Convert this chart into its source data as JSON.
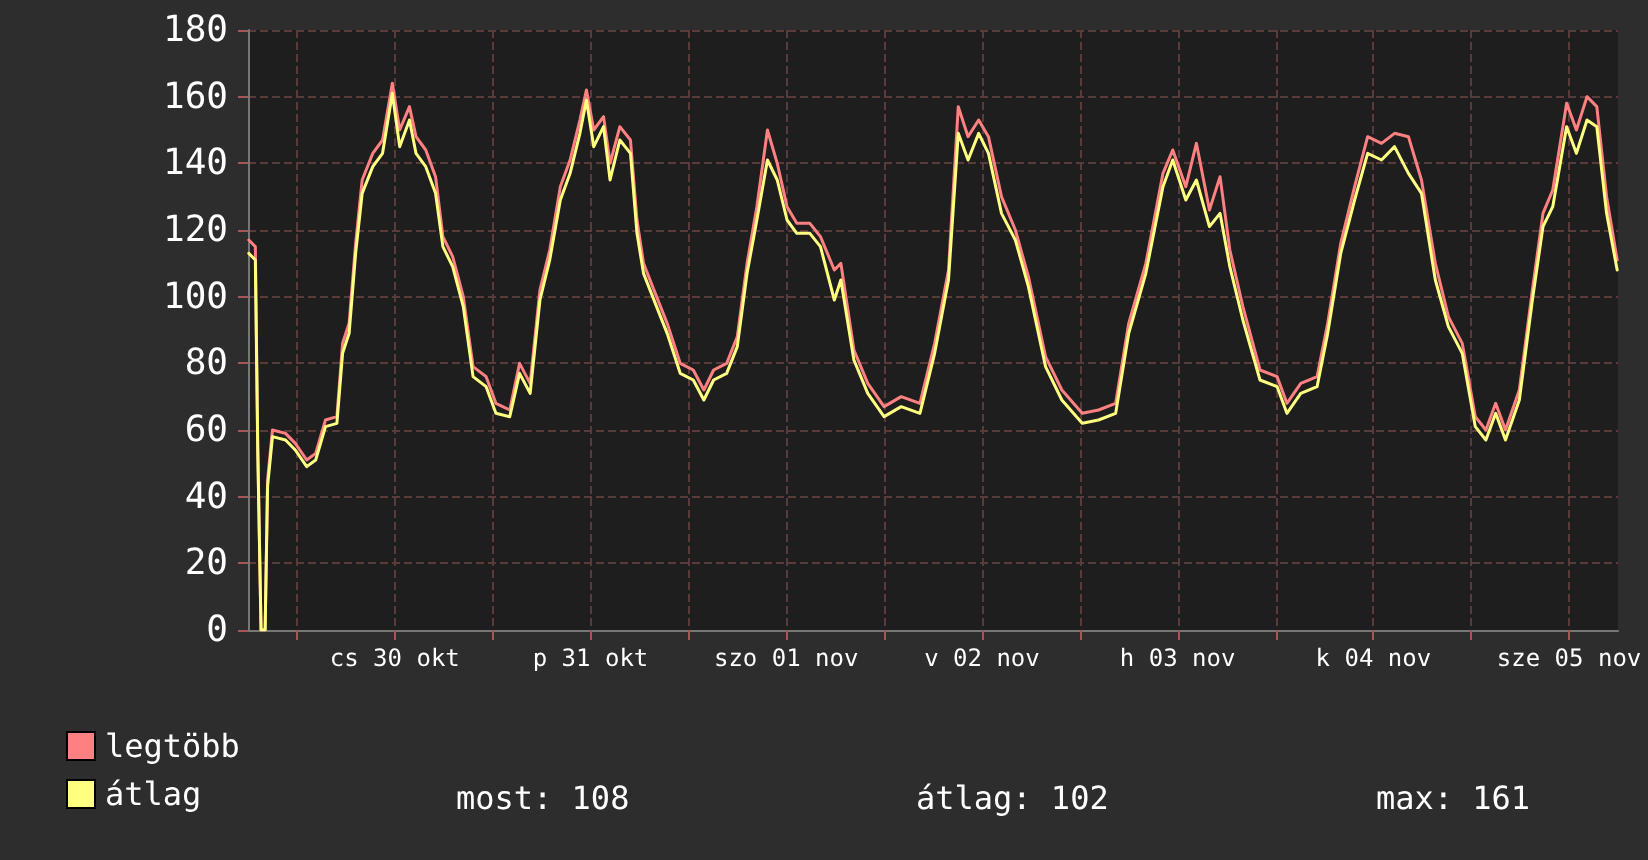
{
  "chart_data": {
    "type": "line",
    "x": [
      "--10-29T18:06",
      "--10-29T18:54",
      "--10-29T19:12",
      "--10-29T19:36",
      "--10-29T20:06",
      "--10-29T20:24",
      "--10-29T21:00",
      "--10-29T22:36",
      "--10-29T23:48",
      "--10-30T01:12",
      "--10-30T02:18",
      "--10-30T03:30",
      "--10-30T04:54",
      "--10-30T05:36",
      "--10-30T06:24",
      "--10-30T07:12",
      "--10-30T08:00",
      "--10-30T09:18",
      "--10-30T10:30",
      "--10-30T11:42",
      "--10-30T12:36",
      "--10-30T13:48",
      "--10-30T14:36",
      "--10-30T15:48",
      "--10-30T17:00",
      "--10-30T17:54",
      "--10-30T19:06",
      "--10-30T20:24",
      "--10-30T21:36",
      "--10-30T23:12",
      "--10-31T00:24",
      "--10-31T02:06",
      "--10-31T03:18",
      "--10-31T04:36",
      "--10-31T05:48",
      "--10-31T07:00",
      "--10-31T08:18",
      "--10-31T09:30",
      "--10-31T10:42",
      "--10-31T11:30",
      "--10-31T12:24",
      "--10-31T13:36",
      "--10-31T14:24",
      "--10-31T15:36",
      "--10-31T16:54",
      "--10-31T17:42",
      "--10-31T18:30",
      "--10-31T20:06",
      "--10-31T21:24",
      "--10-31T23:00",
      "--11-01T00:36",
      "--11-01T01:54",
      "--11-01T03:06",
      "--11-01T04:42",
      "--11-01T06:00",
      "--11-01T07:12",
      "--11-01T08:24",
      "--11-01T09:42",
      "--11-01T10:54",
      "--11-01T12:06",
      "--11-01T13:18",
      "--11-01T14:54",
      "--11-01T16:12",
      "--11-01T17:54",
      "--11-01T18:42",
      "--11-01T20:18",
      "--11-01T22:00",
      "--11-02T00:00",
      "--11-02T02:06",
      "--11-02T04:24",
      "--11-02T06:12",
      "--11-02T07:54",
      "--11-02T09:06",
      "--11-02T10:18",
      "--11-02T11:36",
      "--11-02T12:48",
      "--11-02T14:24",
      "--11-02T16:06",
      "--11-02T17:42",
      "--11-02T19:48",
      "--11-02T21:48",
      "--11-03T00:18",
      "--11-03T02:18",
      "--11-03T04:24",
      "--11-03T06:00",
      "--11-03T08:06",
      "--11-03T10:12",
      "--11-03T11:24",
      "--11-03T13:00",
      "--11-03T14:18",
      "--11-03T15:54",
      "--11-03T17:12",
      "--11-03T18:24",
      "--11-03T20:00",
      "--11-03T22:06",
      "--11-04T00:12",
      "--11-04T01:24",
      "--11-04T03:06",
      "--11-04T05:06",
      "--11-04T06:24",
      "--11-04T08:00",
      "--11-04T09:42",
      "--11-04T11:18",
      "--11-04T13:00",
      "--11-04T14:36",
      "--11-04T16:18",
      "--11-04T17:54",
      "--11-04T19:36",
      "--11-04T21:12",
      "--11-04T22:54",
      "--11-05T00:30",
      "--11-05T01:48",
      "--11-05T03:00",
      "--11-05T04:12",
      "--11-05T05:54",
      "--11-05T07:30",
      "--11-05T08:48",
      "--11-05T10:00",
      "--11-05T11:42",
      "--11-05T12:54",
      "--11-05T14:12",
      "--11-05T15:24",
      "--11-05T16:36",
      "--11-05T17:54"
    ],
    "series": [
      {
        "name": "legtöbb",
        "color": "#ff8080",
        "values": [
          117,
          115,
          55,
          0,
          0,
          45,
          60,
          59,
          56,
          51,
          53,
          63,
          64,
          86,
          92,
          116,
          135,
          143,
          147,
          164,
          150,
          157,
          148,
          144,
          136,
          118,
          112,
          100,
          79,
          76,
          68,
          66,
          80,
          74,
          102,
          114,
          133,
          141,
          153,
          162,
          150,
          154,
          140,
          151,
          147,
          123,
          110,
          100,
          92,
          80,
          78,
          72,
          78,
          80,
          88,
          110,
          127,
          150,
          140,
          127,
          122,
          122,
          118,
          108,
          110,
          84,
          74,
          67,
          70,
          68,
          86,
          108,
          157,
          148,
          153,
          148,
          130,
          120,
          106,
          82,
          72,
          65,
          66,
          68,
          92,
          110,
          137,
          144,
          133,
          146,
          126,
          136,
          114,
          97,
          78,
          76,
          68,
          74,
          76,
          92,
          116,
          133,
          148,
          146,
          149,
          148,
          135,
          110,
          94,
          86,
          64,
          60,
          68,
          60,
          72,
          102,
          125,
          132,
          158,
          150,
          160,
          157,
          130,
          111
        ]
      },
      {
        "name": "átlag",
        "color": "#ffff80",
        "values": [
          113,
          111,
          53,
          0,
          0,
          43,
          58,
          57,
          54,
          49,
          51,
          61,
          62,
          83,
          89,
          113,
          131,
          139,
          143,
          161,
          145,
          153,
          143,
          139,
          131,
          115,
          109,
          97,
          76,
          73,
          65,
          64,
          77,
          71,
          99,
          111,
          129,
          137,
          149,
          159,
          145,
          151,
          135,
          147,
          143,
          119,
          107,
          97,
          89,
          77,
          75,
          69,
          75,
          77,
          85,
          107,
          123,
          141,
          135,
          123,
          119,
          119,
          115,
          99,
          105,
          81,
          71,
          64,
          67,
          65,
          83,
          105,
          149,
          141,
          149,
          143,
          125,
          117,
          103,
          79,
          69,
          62,
          63,
          65,
          89,
          107,
          133,
          141,
          129,
          135,
          121,
          125,
          109,
          93,
          75,
          73,
          65,
          71,
          73,
          89,
          113,
          129,
          143,
          141,
          145,
          137,
          131,
          105,
          91,
          83,
          61,
          57,
          65,
          57,
          69,
          99,
          121,
          127,
          151,
          143,
          153,
          151,
          125,
          108
        ]
      }
    ],
    "xlim": [
      "--10-29T18:00",
      "--11-05T18:00"
    ],
    "xticks": [
      {
        "value": "--10-30T00:00",
        "label": null
      },
      {
        "value": "--10-30T12:00",
        "label": "cs 30 okt"
      },
      {
        "value": "--10-31T00:00",
        "label": null
      },
      {
        "value": "--10-31T12:00",
        "label": "p 31 okt"
      },
      {
        "value": "--11-01T00:00",
        "label": null
      },
      {
        "value": "--11-01T12:00",
        "label": "szo 01 nov"
      },
      {
        "value": "--11-02T00:00",
        "label": null
      },
      {
        "value": "--11-02T12:00",
        "label": "v 02 nov"
      },
      {
        "value": "--11-03T00:00",
        "label": null
      },
      {
        "value": "--11-03T12:00",
        "label": "h 03 nov"
      },
      {
        "value": "--11-04T00:00",
        "label": null
      },
      {
        "value": "--11-04T12:00",
        "label": "k 04 nov"
      },
      {
        "value": "--11-05T00:00",
        "label": null
      },
      {
        "value": "--11-05T12:00",
        "label": "sze 05 nov"
      }
    ],
    "ylim": [
      0,
      180
    ],
    "yticks": [
      0,
      20,
      40,
      60,
      80,
      100,
      120,
      140,
      160,
      180
    ],
    "grid": true,
    "legend": "bottom left",
    "marker": "none",
    "line_style": "solid",
    "annotations": [
      "most: 108",
      "átlag: 102",
      "max: 161"
    ]
  }
}
